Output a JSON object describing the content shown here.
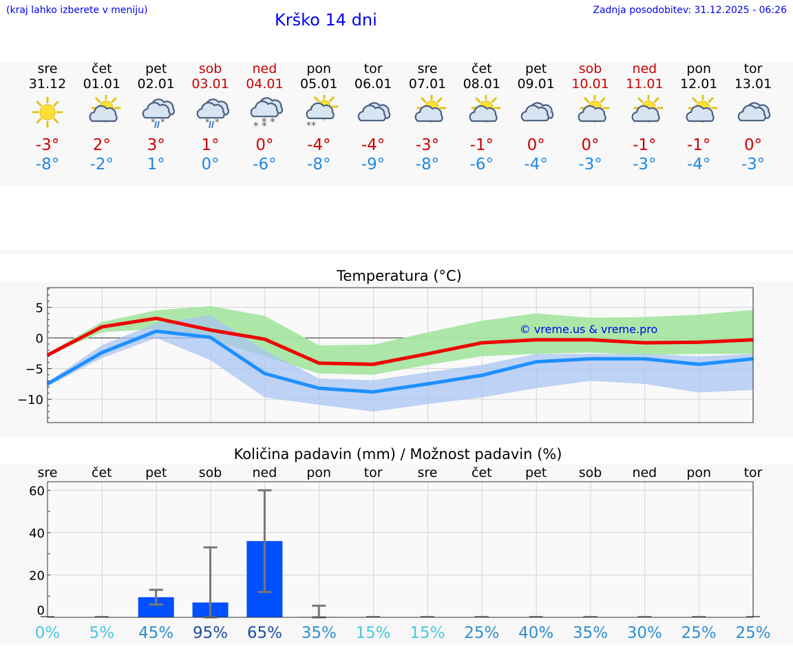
{
  "header": {
    "menu_hint": "(kraj lahko izberete v meniju)",
    "title": "Krško 14 dni",
    "updated": "Zadnja posodobitev: 31.12.2025 - 06:26"
  },
  "days": [
    {
      "name": "sre",
      "date": "31.12",
      "weekend": false,
      "icon": "sun-icon",
      "max": "-3°",
      "min": "-8°"
    },
    {
      "name": "čet",
      "date": "01.01",
      "weekend": false,
      "icon": "partly-cloudy-icon",
      "max": "2°",
      "min": "-2°"
    },
    {
      "name": "pet",
      "date": "02.01",
      "weekend": false,
      "icon": "cloud-sleet-icon",
      "max": "3°",
      "min": "1°"
    },
    {
      "name": "sob",
      "date": "03.01",
      "weekend": true,
      "icon": "cloud-sleet-icon",
      "max": "1°",
      "min": "0°"
    },
    {
      "name": "ned",
      "date": "04.01",
      "weekend": true,
      "icon": "cloud-snow-icon",
      "max": "0°",
      "min": "-6°"
    },
    {
      "name": "pon",
      "date": "05.01",
      "weekend": false,
      "icon": "sun-snow-icon",
      "max": "-4°",
      "min": "-8°"
    },
    {
      "name": "tor",
      "date": "06.01",
      "weekend": false,
      "icon": "cloud-icon",
      "max": "-4°",
      "min": "-9°"
    },
    {
      "name": "sre",
      "date": "07.01",
      "weekend": false,
      "icon": "partly-cloudy-icon",
      "max": "-3°",
      "min": "-8°"
    },
    {
      "name": "čet",
      "date": "08.01",
      "weekend": false,
      "icon": "partly-cloudy-icon",
      "max": "-1°",
      "min": "-6°"
    },
    {
      "name": "pet",
      "date": "09.01",
      "weekend": false,
      "icon": "cloud-icon",
      "max": "0°",
      "min": "-4°"
    },
    {
      "name": "sob",
      "date": "10.01",
      "weekend": true,
      "icon": "partly-cloudy-icon",
      "max": "0°",
      "min": "-3°"
    },
    {
      "name": "ned",
      "date": "11.01",
      "weekend": true,
      "icon": "partly-cloudy-icon",
      "max": "-1°",
      "min": "-3°"
    },
    {
      "name": "pon",
      "date": "12.01",
      "weekend": false,
      "icon": "partly-cloudy-icon",
      "max": "-1°",
      "min": "-4°"
    },
    {
      "name": "tor",
      "date": "13.01",
      "weekend": false,
      "icon": "cloud-icon",
      "max": "0°",
      "min": "-3°"
    }
  ],
  "colors": {
    "max": "#ee0000",
    "min": "#1e8fff",
    "band_max": "#a8e6a3",
    "band_min": "#a8c4f2",
    "bar": "#0050ff"
  },
  "chart_data": [
    {
      "type": "line",
      "title": "Temperatura (°C)",
      "watermark": "© vreme.us & vreme.pro",
      "x": [
        0,
        1,
        2,
        3,
        4,
        5,
        6,
        7,
        8,
        9,
        10,
        11,
        12,
        13
      ],
      "ylim": [
        -13.8,
        8.2
      ],
      "yticks": [
        5,
        0,
        -5,
        -10
      ],
      "ytick_labels": [
        "5",
        "0",
        "−5",
        "−10"
      ],
      "series": [
        {
          "name": "max",
          "values": [
            -2.8,
            1.8,
            3.2,
            1.3,
            -0.2,
            -4.1,
            -4.3,
            -2.6,
            -0.8,
            -0.3,
            -0.3,
            -0.8,
            -0.7,
            -0.3
          ]
        },
        {
          "name": "min",
          "values": [
            -7.5,
            -2.4,
            1.1,
            0.1,
            -5.8,
            -8.2,
            -8.8,
            -7.5,
            -6.1,
            -3.9,
            -3.4,
            -3.4,
            -4.3,
            -3.4
          ]
        }
      ],
      "bands": [
        {
          "name": "max_range",
          "upper": [
            -2.5,
            2.6,
            4.5,
            5.2,
            3.6,
            -1.2,
            -1.1,
            0.9,
            2.8,
            4.0,
            3.3,
            3.4,
            3.8,
            4.6
          ],
          "lower": [
            -2.8,
            0.9,
            1.5,
            -0.2,
            -3.0,
            -5.8,
            -6.0,
            -4.4,
            -3.0,
            -2.6,
            -2.4,
            -2.8,
            -2.6,
            -2.6
          ]
        },
        {
          "name": "min_range",
          "upper": [
            -7.2,
            -1.2,
            2.4,
            3.7,
            -2.0,
            -6.6,
            -6.9,
            -5.6,
            -4.4,
            -2.6,
            -2.6,
            -2.6,
            -3.0,
            -2.6
          ]
        },
        {
          "name": "min_range_lower",
          "values": [
            -7.9,
            -3.3,
            0.0,
            -3.6,
            -9.7,
            -10.9,
            -12.0,
            -10.8,
            -9.7,
            -8.2,
            -7.0,
            -7.5,
            -8.9,
            -8.5
          ]
        }
      ]
    },
    {
      "type": "bar",
      "title": "Količina padavin (mm) / Možnost padavin (%)",
      "categories": [
        "sre",
        "čet",
        "pet",
        "sob",
        "ned",
        "pon",
        "tor",
        "sre",
        "čet",
        "pet",
        "sob",
        "ned",
        "pon",
        "tor"
      ],
      "values": [
        0,
        0,
        9.5,
        7,
        36,
        0.2,
        0,
        0,
        0,
        0,
        0,
        0,
        0,
        0
      ],
      "err_low": [
        0,
        0,
        6,
        0,
        12,
        0,
        0,
        0,
        0,
        0,
        0,
        0,
        0,
        0
      ],
      "err_high": [
        0,
        0,
        13,
        33,
        60,
        5.5,
        0,
        0,
        0,
        0,
        0,
        0,
        0,
        0
      ],
      "ylim": [
        0,
        64
      ],
      "yticks": [
        0,
        20,
        40,
        60
      ],
      "probability": [
        "0%",
        "5%",
        "45%",
        "95%",
        "65%",
        "35%",
        "15%",
        "15%",
        "25%",
        "40%",
        "35%",
        "30%",
        "25%",
        "25%"
      ],
      "probability_values": [
        0,
        5,
        45,
        95,
        65,
        35,
        15,
        15,
        25,
        40,
        35,
        30,
        25,
        25
      ]
    }
  ]
}
